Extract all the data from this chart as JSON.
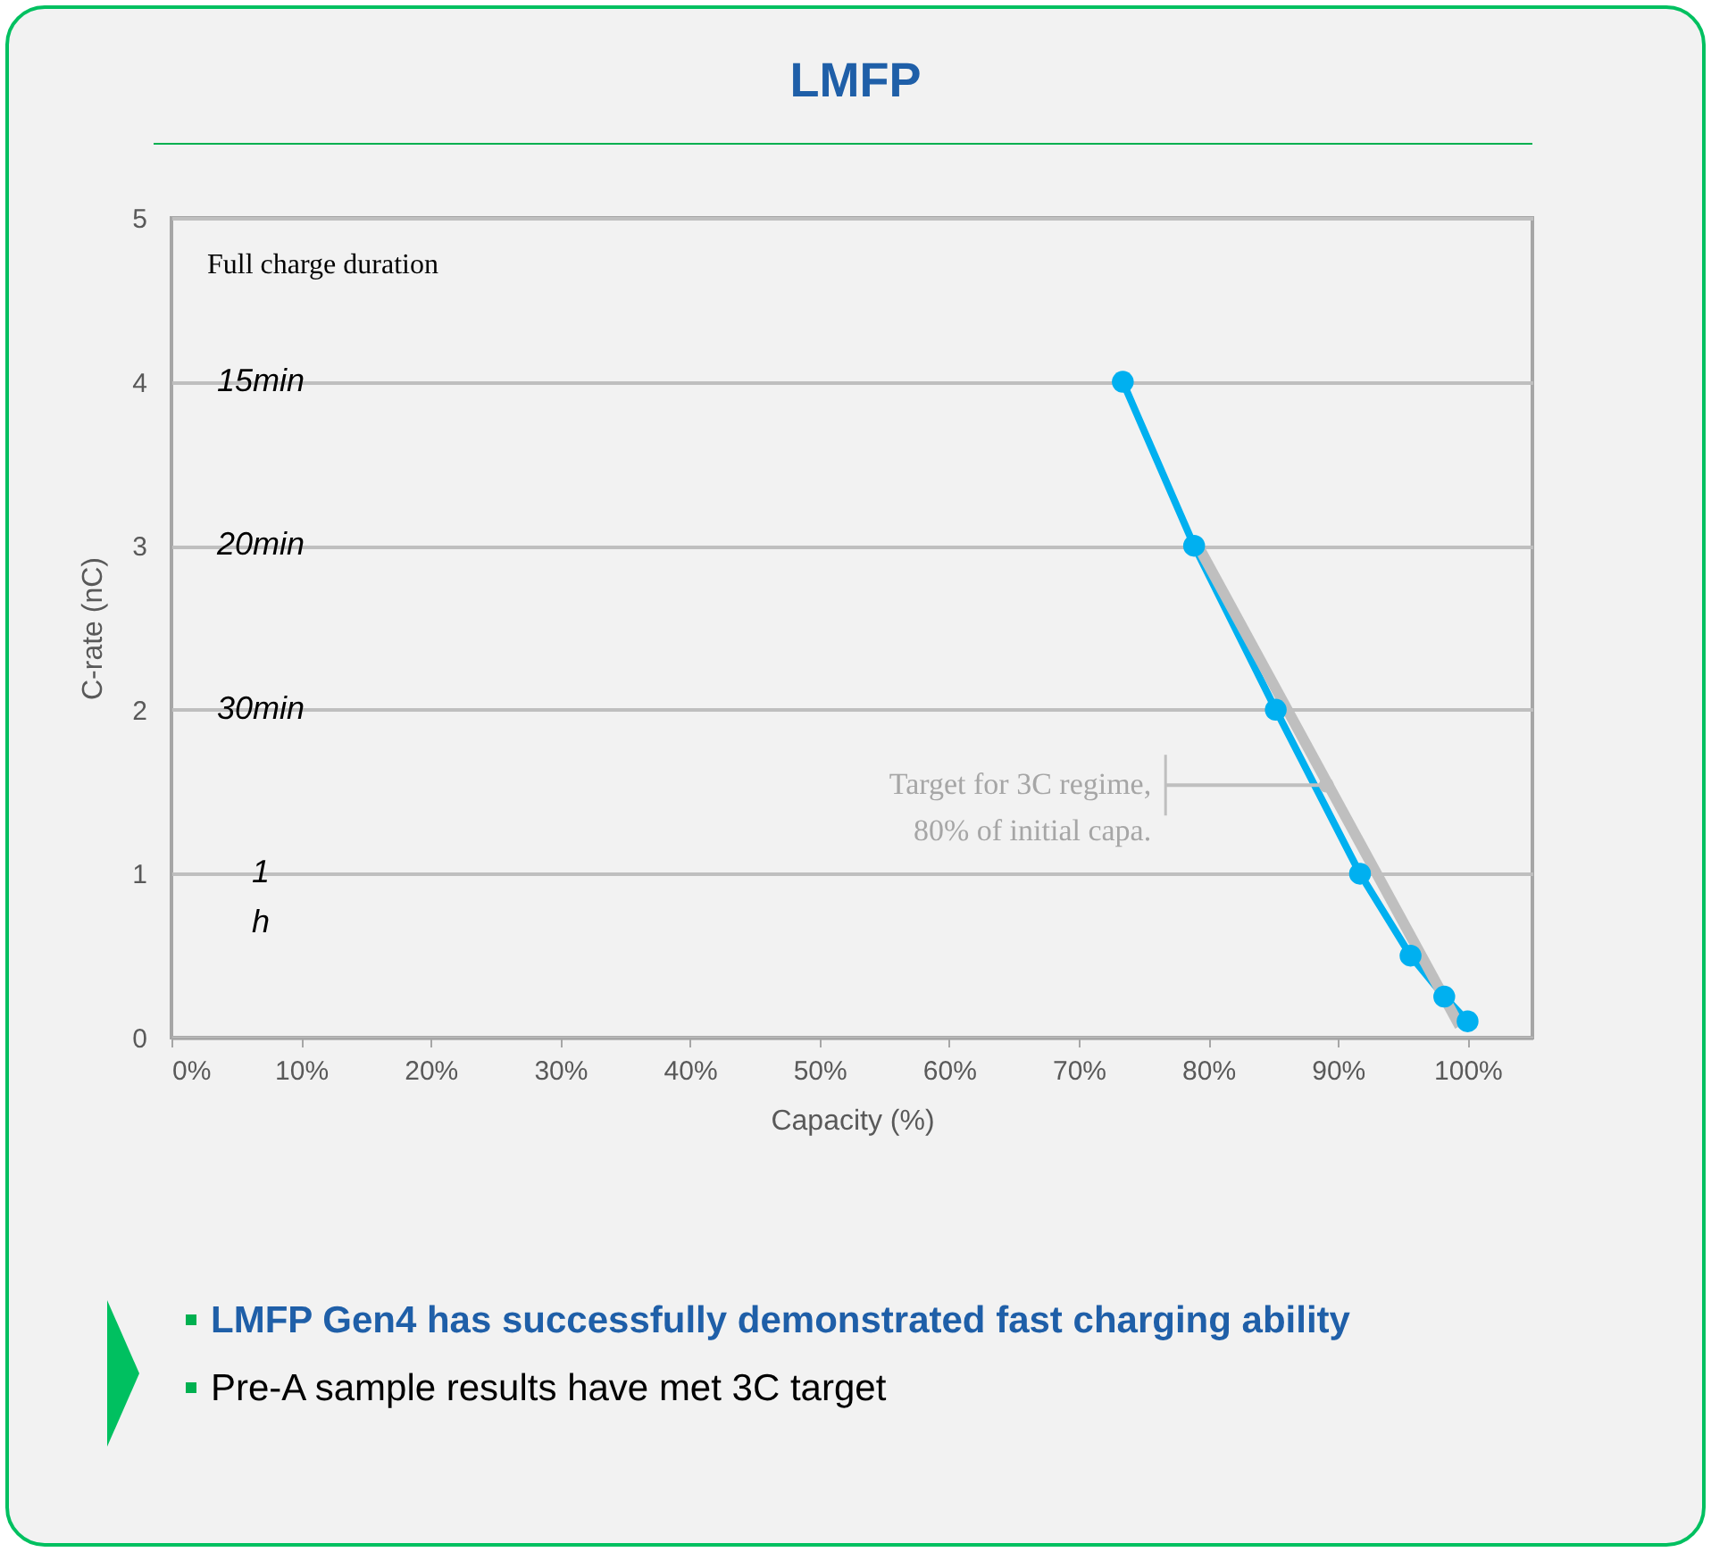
{
  "chart_data": {
    "type": "line",
    "title": "LMFP",
    "xlabel": "Capacity (%)",
    "ylabel": "C-rate (nC)",
    "series": [
      {
        "color": "#00b0f0",
        "marker": "circle",
        "x": [
          73.4,
          78.9,
          85.2,
          91.7,
          95.6,
          98.2,
          100
        ],
        "values": [
          4,
          3,
          2,
          1,
          0.5,
          0.25,
          0.1
        ]
      },
      {
        "color": "#bfbfbf",
        "marker": "none",
        "x": [
          79.2,
          99.4
        ],
        "values": [
          3,
          0.07
        ]
      }
    ],
    "xlim": [
      0,
      105
    ],
    "ylim": [
      0,
      5
    ],
    "xticks": [
      {
        "value": 0,
        "label": "0%"
      },
      {
        "value": 10,
        "label": "10%"
      },
      {
        "value": 20,
        "label": "20%"
      },
      {
        "value": 30,
        "label": "30%"
      },
      {
        "value": 40,
        "label": "40%"
      },
      {
        "value": 50,
        "label": "50%"
      },
      {
        "value": 60,
        "label": "60%"
      },
      {
        "value": 70,
        "label": "70%"
      },
      {
        "value": 80,
        "label": "80%"
      },
      {
        "value": 90,
        "label": "90%"
      },
      {
        "value": 100,
        "label": "100%"
      }
    ],
    "yticks": [
      0,
      1,
      2,
      3,
      4,
      5
    ],
    "grid": "y",
    "line_style": "solid",
    "annotations": [
      "Full charge duration",
      "15min",
      "20min",
      "30min",
      "1 h",
      {
        "text": "Target for 3C regime, 80% of initial capa.",
        "x": 89.1,
        "y": 1.54
      },
      "LMFP Gen4 has successfully demonstrated fast charging ability",
      "Pre-A sample results have met 3C target"
    ]
  }
}
